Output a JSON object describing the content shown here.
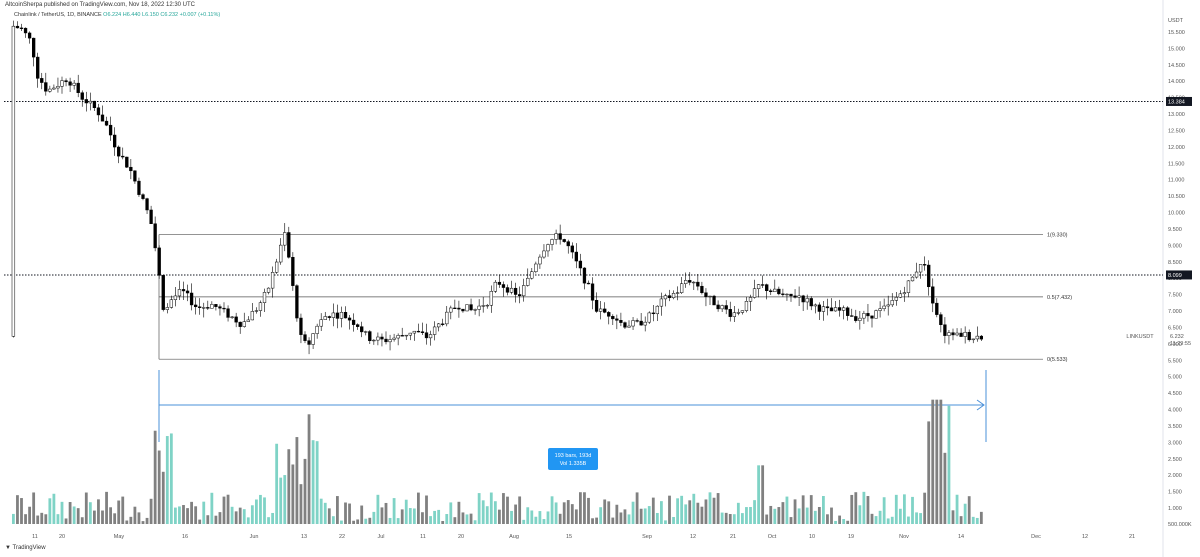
{
  "header": {
    "published": "AltcoinSherpa published on TradingView.com, Nov 18, 2022 12:30 UTC",
    "symbol_line": "Chainlink / TetherUS, 1D, BINANCE",
    "ohlc": "O6.224 H6.440 L6.150 C6.232 +0.007 (+0.11%)"
  },
  "watermark": "TradingView",
  "colors": {
    "up_candle_fill": "#ffffff",
    "down_candle_fill": "#000000",
    "candle_outline": "#000000",
    "volume_up": "#7fd3c6",
    "volume_down": "#808080",
    "measure_line": "#4a90d9",
    "measure_label_bg": "#2196f3",
    "fib_line": "#555555",
    "price_axis_label_bg": "#131722"
  },
  "axis": {
    "currency": "USDT",
    "price_ticks": [
      "15.500",
      "15.000",
      "14.500",
      "14.000",
      "13.500",
      "13.000",
      "12.500",
      "12.000",
      "11.500",
      "11.000",
      "10.500",
      "10.000",
      "9.500",
      "9.000",
      "8.500",
      "8.000",
      "7.500",
      "7.000",
      "6.500",
      "6.000",
      "5.500",
      "5.000",
      "4.500",
      "4.000",
      "3.500",
      "3.000",
      "2.500",
      "2.000",
      "1.500",
      "1.000",
      "500.000K"
    ],
    "time_ticks": [
      "11",
      "20",
      "May",
      "16",
      "Jun",
      "13",
      "22",
      "Jul",
      "11",
      "20",
      "Aug",
      "15",
      "Sep",
      "12",
      "21",
      "Oct",
      "10",
      "19",
      "Nov",
      "14",
      "Dec",
      "12",
      "21"
    ],
    "highlighted_levels": [
      {
        "label": "13.384",
        "price": 13.384
      },
      {
        "label": "8.099",
        "price": 8.099
      }
    ],
    "symbol_tag": "LINKUSDT",
    "last_price": "6.232",
    "countdown": "11:29:55"
  },
  "fib_levels": [
    {
      "label": "1(9.330)",
      "price": 9.33
    },
    {
      "label": "0.5(7.432)",
      "price": 7.432
    },
    {
      "label": "0(5.533)",
      "price": 5.533
    }
  ],
  "measure": {
    "line1": "193 bars, 193d",
    "line2": "Vol 1.335B"
  },
  "chart_data": {
    "type": "candlestick",
    "title": "Chainlink / TetherUS, 1D, BINANCE",
    "price_range": [
      0,
      15.9
    ],
    "volume_unit_note": "volume in USDT-scale axis units (M)",
    "candles": []
  }
}
